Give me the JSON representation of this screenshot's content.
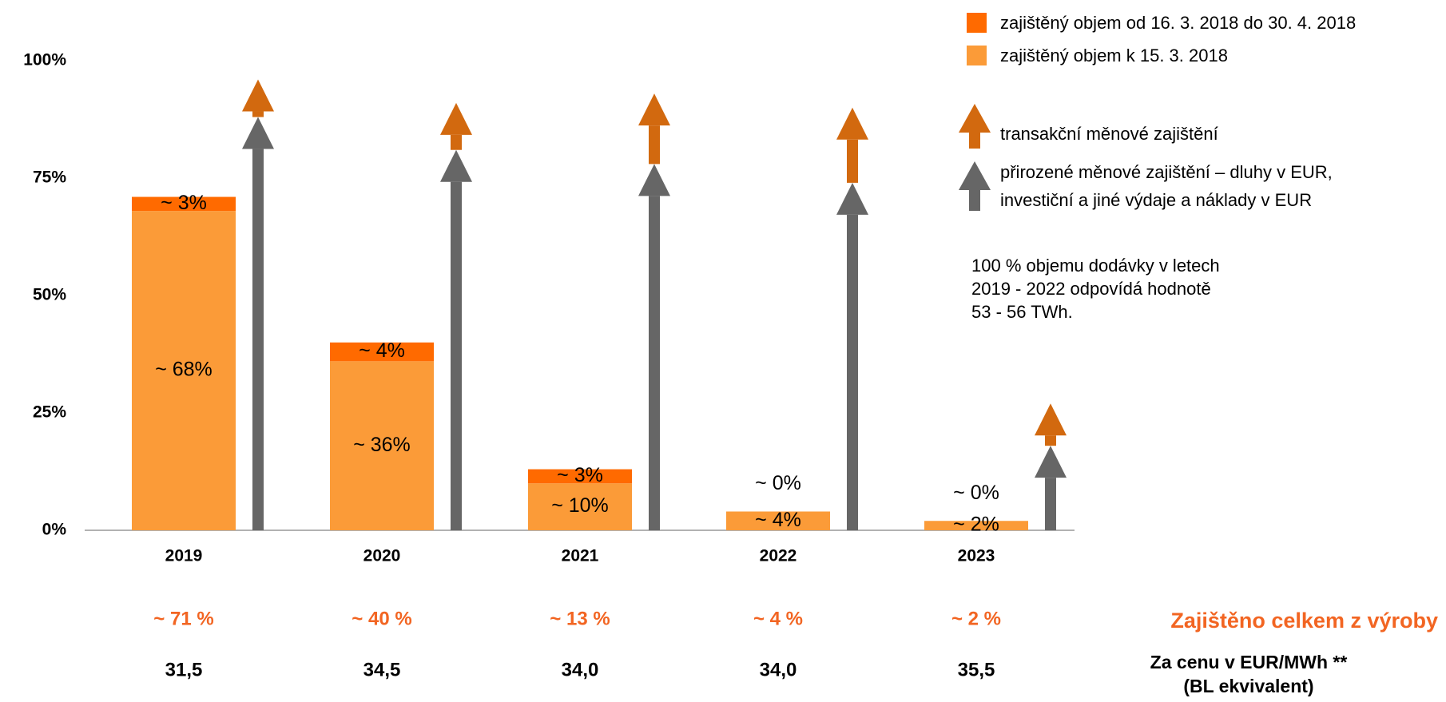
{
  "chart_data": {
    "type": "bar",
    "stacked": true,
    "categories": [
      "2019",
      "2020",
      "2021",
      "2022",
      "2023"
    ],
    "ylim": [
      0,
      100
    ],
    "yticks": [
      {
        "value": 0,
        "label": "0%"
      },
      {
        "value": 25,
        "label": "25%"
      },
      {
        "value": 50,
        "label": "50%"
      },
      {
        "value": 75,
        "label": "75%"
      },
      {
        "value": 100,
        "label": "100%"
      }
    ],
    "grid": false,
    "series": [
      {
        "name": "zajištěný objem k 15. 3. 2018",
        "color": "#fb9b38",
        "values": [
          68,
          36,
          10,
          4,
          2
        ],
        "value_labels": [
          "~ 68%",
          "~ 36%",
          "~ 10%",
          "~ 4%",
          "~ 2%"
        ]
      },
      {
        "name": "zajištěný objem od 16. 3. 2018 do 30. 4. 2018",
        "color": "#ff6a00",
        "values": [
          3,
          4,
          3,
          0,
          0
        ],
        "value_labels": [
          "~ 3%",
          "~ 4%",
          "~ 3%",
          "~ 0%",
          "~ 0%"
        ]
      }
    ],
    "arrows": [
      {
        "name": "přirozené měnové zajištění – dluhy v EUR, investiční a jiné výdaje a náklady v EUR",
        "color": "#666666",
        "values": [
          88,
          81,
          78,
          74,
          18
        ]
      },
      {
        "name": "transakční měnové zajištění",
        "color": "#d2690f",
        "values": [
          8,
          10,
          15,
          16,
          9
        ]
      }
    ],
    "note": "100 % objemu dodávky v letech 2019 - 2022 odpovídá hodnotě 53 - 56 TWh.",
    "totals": {
      "label": "Zajištěno celkem z výroby",
      "value_labels": [
        "~ 71 %",
        "~ 40 %",
        "~ 13 %",
        "~ 4 %",
        "~ 2 %"
      ],
      "color": "#f26522"
    },
    "prices": {
      "label": [
        "Za cenu v EUR/MWh **",
        "(BL ekvivalent)"
      ],
      "value_labels": [
        "31,5",
        "34,5",
        "34,0",
        "34,0",
        "35,5"
      ]
    }
  }
}
